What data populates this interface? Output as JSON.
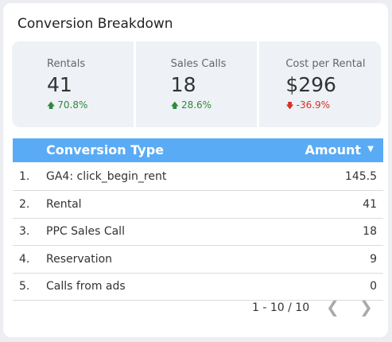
{
  "header": {
    "title": "Conversion Breakdown"
  },
  "kpis": [
    {
      "label": "Rentals",
      "value": "41",
      "change": "70.8%"
    },
    {
      "label": "Sales Calls",
      "value": "18",
      "change": "28.6%"
    },
    {
      "label": "Cost per Rental",
      "value": "$296",
      "change": "-36.9%"
    }
  ],
  "table": {
    "columns": [
      "Conversion Type",
      "Amount"
    ],
    "rows": [
      [
        "1.",
        "GA4: click_begin_rent",
        "145.5"
      ],
      [
        "2.",
        "Rental",
        "41"
      ],
      [
        "3.",
        "PPC Sales Call",
        "18"
      ],
      [
        "4.",
        "Reservation",
        "9"
      ],
      [
        "5.",
        "Calls from ads",
        "0"
      ]
    ],
    "pagination": "1 - 10 / 10"
  }
}
